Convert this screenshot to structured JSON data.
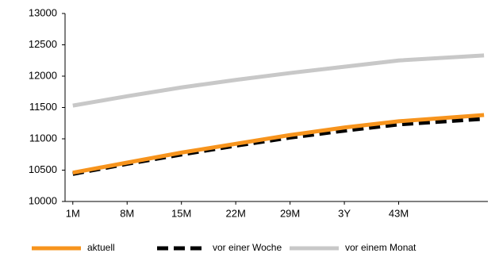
{
  "chart_data": {
    "type": "line",
    "x": [
      1,
      8,
      15,
      22,
      29,
      36,
      43,
      54
    ],
    "xlim": [
      0,
      54.5
    ],
    "xticks": [
      {
        "value": 1,
        "label": "1M"
      },
      {
        "value": 8,
        "label": "8M"
      },
      {
        "value": 15,
        "label": "15M"
      },
      {
        "value": 22,
        "label": "22M"
      },
      {
        "value": 29,
        "label": "29M"
      },
      {
        "value": 36,
        "label": "3Y"
      },
      {
        "value": 43,
        "label": "43M"
      }
    ],
    "ylim": [
      10000,
      13000
    ],
    "yticks": [
      10000,
      10500,
      11000,
      11500,
      12000,
      12500,
      13000
    ],
    "grid": false,
    "legend": "bottom",
    "series": [
      {
        "name": "aktuell",
        "color": "#f7941d",
        "dash": false,
        "values": [
          10460,
          10620,
          10780,
          10920,
          11060,
          11180,
          11280,
          11380
        ]
      },
      {
        "name": "vor einer Woche",
        "color": "#000000",
        "dash": true,
        "values": [
          10440,
          10600,
          10750,
          10890,
          11020,
          11130,
          11230,
          11320
        ]
      },
      {
        "name": "vor einem Monat",
        "color": "#c8c8c8",
        "dash": false,
        "values": [
          11530,
          11680,
          11820,
          11940,
          12050,
          12150,
          12250,
          12330
        ]
      }
    ]
  }
}
